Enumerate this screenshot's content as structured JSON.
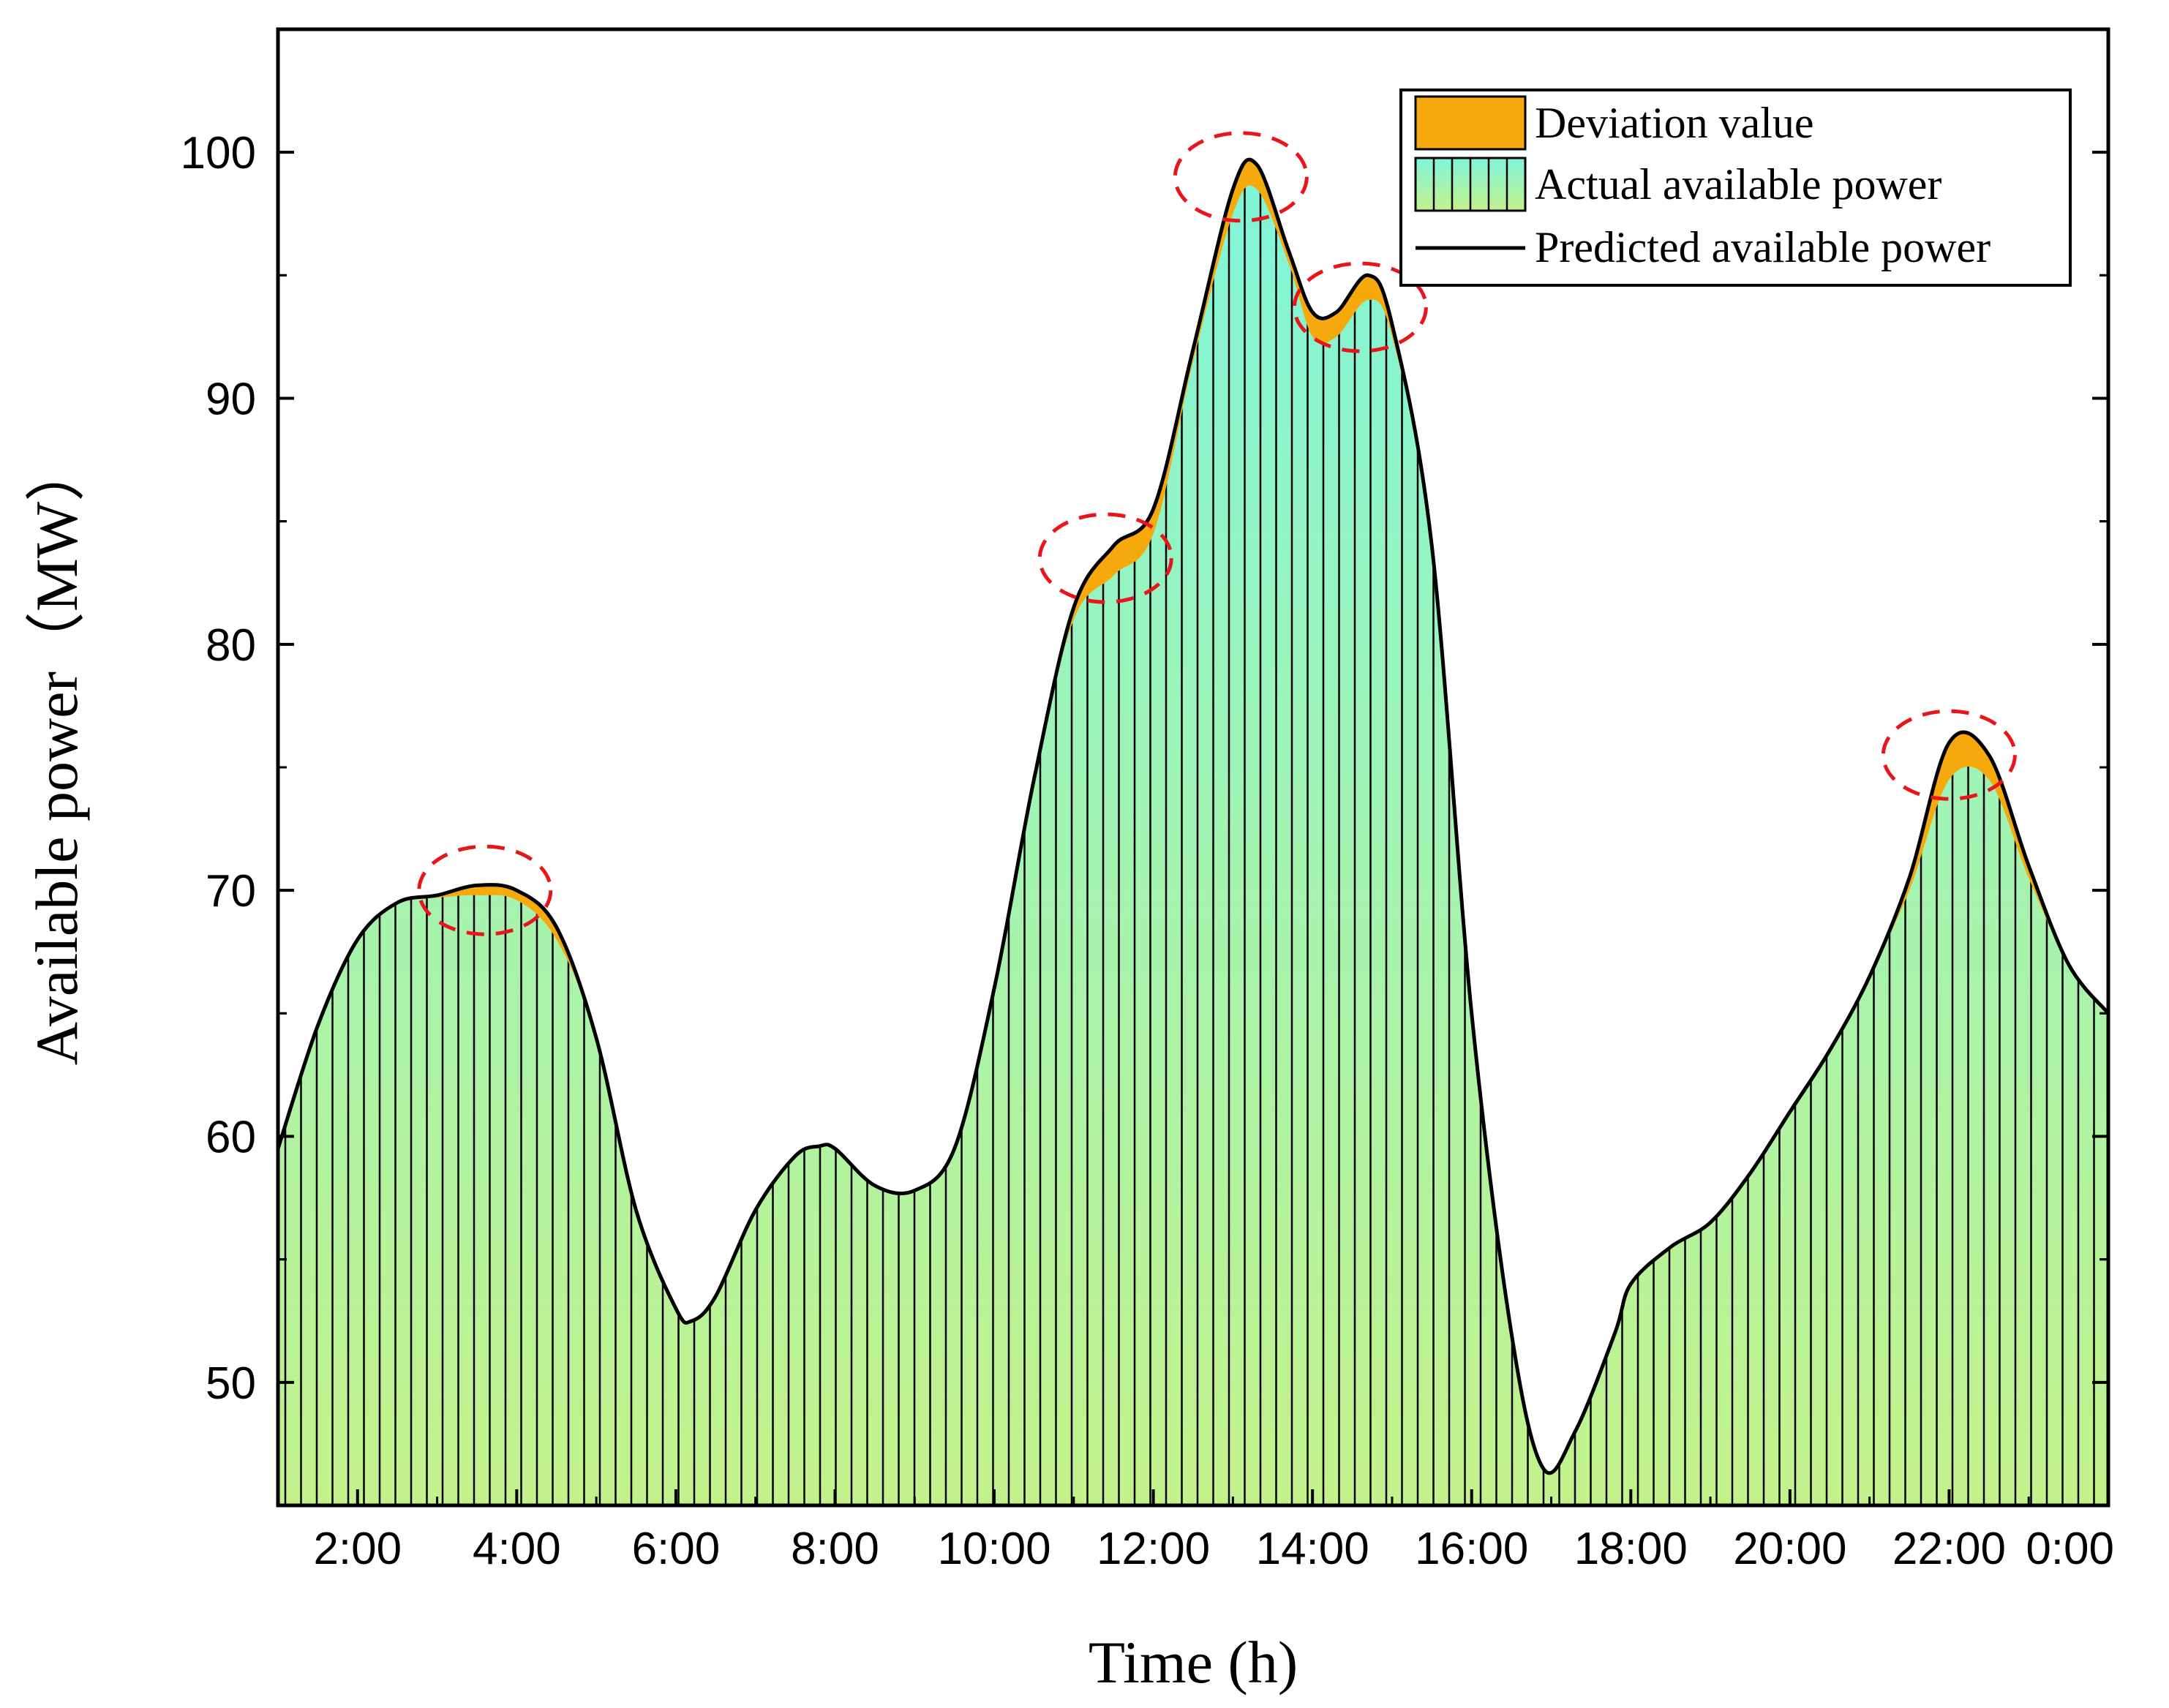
{
  "chart_data": {
    "type": "area",
    "title": "",
    "xlabel": "Time (h)",
    "ylabel": "Available power（MW）",
    "xlim": [
      1.0,
      24.0
    ],
    "ylim": [
      45,
      105
    ],
    "x_ticks": [
      {
        "value": 2,
        "label": "2:00"
      },
      {
        "value": 4,
        "label": "4:00"
      },
      {
        "value": 6,
        "label": "6:00"
      },
      {
        "value": 8,
        "label": "8:00"
      },
      {
        "value": 10,
        "label": "10:00"
      },
      {
        "value": 12,
        "label": "12:00"
      },
      {
        "value": 14,
        "label": "14:00"
      },
      {
        "value": 16,
        "label": "16:00"
      },
      {
        "value": 18,
        "label": "18:00"
      },
      {
        "value": 20,
        "label": "20:00"
      },
      {
        "value": 22,
        "label": "22:00"
      },
      {
        "value": 24,
        "label": "0:00"
      }
    ],
    "y_ticks": [
      {
        "value": 50,
        "label": "50"
      },
      {
        "value": 60,
        "label": "60"
      },
      {
        "value": 70,
        "label": "70"
      },
      {
        "value": 80,
        "label": "80"
      },
      {
        "value": 90,
        "label": "90"
      },
      {
        "value": 100,
        "label": "100"
      }
    ],
    "legend": {
      "position": "top-right",
      "entries": [
        {
          "label": "Deviation value",
          "color": "#F5A90D"
        },
        {
          "label": "Actual available power",
          "color": "#7FF5DB"
        },
        {
          "label": "Predicted available power",
          "color": "#000000"
        }
      ]
    },
    "series": [
      {
        "name": "Predicted available power",
        "x": [
          1.0,
          1.5,
          2.0,
          2.5,
          3.0,
          3.5,
          4.0,
          4.5,
          5.0,
          5.5,
          6.0,
          6.2,
          6.5,
          7.0,
          7.5,
          7.8,
          8.0,
          8.5,
          9.0,
          9.5,
          10.0,
          10.5,
          11.0,
          11.5,
          12.0,
          12.5,
          13.0,
          13.3,
          13.7,
          14.0,
          14.3,
          14.7,
          15.0,
          15.5,
          16.0,
          16.5,
          16.9,
          17.3,
          17.8,
          18.0,
          18.5,
          19.0,
          19.5,
          20.0,
          20.5,
          21.0,
          21.5,
          22.0,
          22.5,
          23.0,
          23.5,
          24.0
        ],
        "values": [
          59.5,
          64.5,
          68.0,
          69.5,
          69.8,
          70.2,
          70.0,
          68.5,
          64.0,
          57.0,
          53.0,
          52.5,
          53.5,
          57.0,
          59.2,
          59.6,
          59.5,
          58.0,
          57.8,
          59.5,
          66.0,
          74.5,
          81.5,
          84.0,
          85.5,
          92.0,
          98.5,
          99.5,
          96.0,
          93.5,
          93.5,
          95.0,
          93.0,
          84.0,
          65.0,
          52.0,
          46.5,
          48.0,
          52.0,
          54.0,
          55.5,
          56.5,
          58.5,
          61.0,
          63.5,
          66.5,
          70.5,
          76.0,
          75.5,
          71.0,
          67.0,
          65.0
        ]
      },
      {
        "name": "Actual available power",
        "x": [
          1.0,
          1.5,
          2.0,
          2.5,
          3.0,
          3.5,
          4.0,
          4.5,
          5.0,
          5.5,
          6.0,
          6.2,
          6.5,
          7.0,
          7.5,
          7.8,
          8.0,
          8.5,
          9.0,
          9.5,
          10.0,
          10.5,
          11.0,
          11.5,
          12.0,
          12.5,
          13.0,
          13.3,
          13.7,
          14.0,
          14.3,
          14.7,
          15.0,
          15.5,
          16.0,
          16.5,
          16.9,
          17.3,
          17.8,
          18.0,
          18.5,
          19.0,
          19.5,
          20.0,
          20.5,
          21.0,
          21.5,
          22.0,
          22.5,
          23.0,
          23.5,
          24.0
        ],
        "values": [
          59.5,
          64.5,
          68.0,
          69.5,
          69.7,
          69.8,
          69.6,
          68.0,
          64.0,
          57.0,
          53.0,
          52.5,
          53.5,
          57.0,
          59.2,
          59.6,
          59.5,
          58.0,
          57.8,
          59.5,
          66.0,
          74.5,
          81.0,
          82.8,
          84.5,
          91.5,
          97.5,
          98.5,
          95.5,
          92.5,
          92.5,
          94.0,
          92.5,
          84.0,
          65.0,
          52.0,
          46.5,
          48.0,
          52.0,
          54.0,
          55.5,
          56.5,
          58.5,
          61.0,
          63.5,
          66.5,
          70.0,
          74.5,
          74.5,
          70.5,
          67.0,
          65.0
        ]
      }
    ],
    "annotations": [
      {
        "type": "dashed-ellipse",
        "center_x": 3.6,
        "center_y": 70.0
      },
      {
        "type": "dashed-ellipse",
        "center_x": 11.4,
        "center_y": 83.5
      },
      {
        "type": "dashed-ellipse",
        "center_x": 13.1,
        "center_y": 99.0
      },
      {
        "type": "dashed-ellipse",
        "center_x": 14.6,
        "center_y": 93.7
      },
      {
        "type": "dashed-ellipse",
        "center_x": 22.0,
        "center_y": 75.5
      }
    ],
    "colors": {
      "deviation": "#F5A90D",
      "fill_top": "#7FF5DB",
      "fill_bottom": "#C3F28B",
      "predicted_line": "#000000",
      "annotation": "#E8151B",
      "hatch": "#000000"
    }
  }
}
